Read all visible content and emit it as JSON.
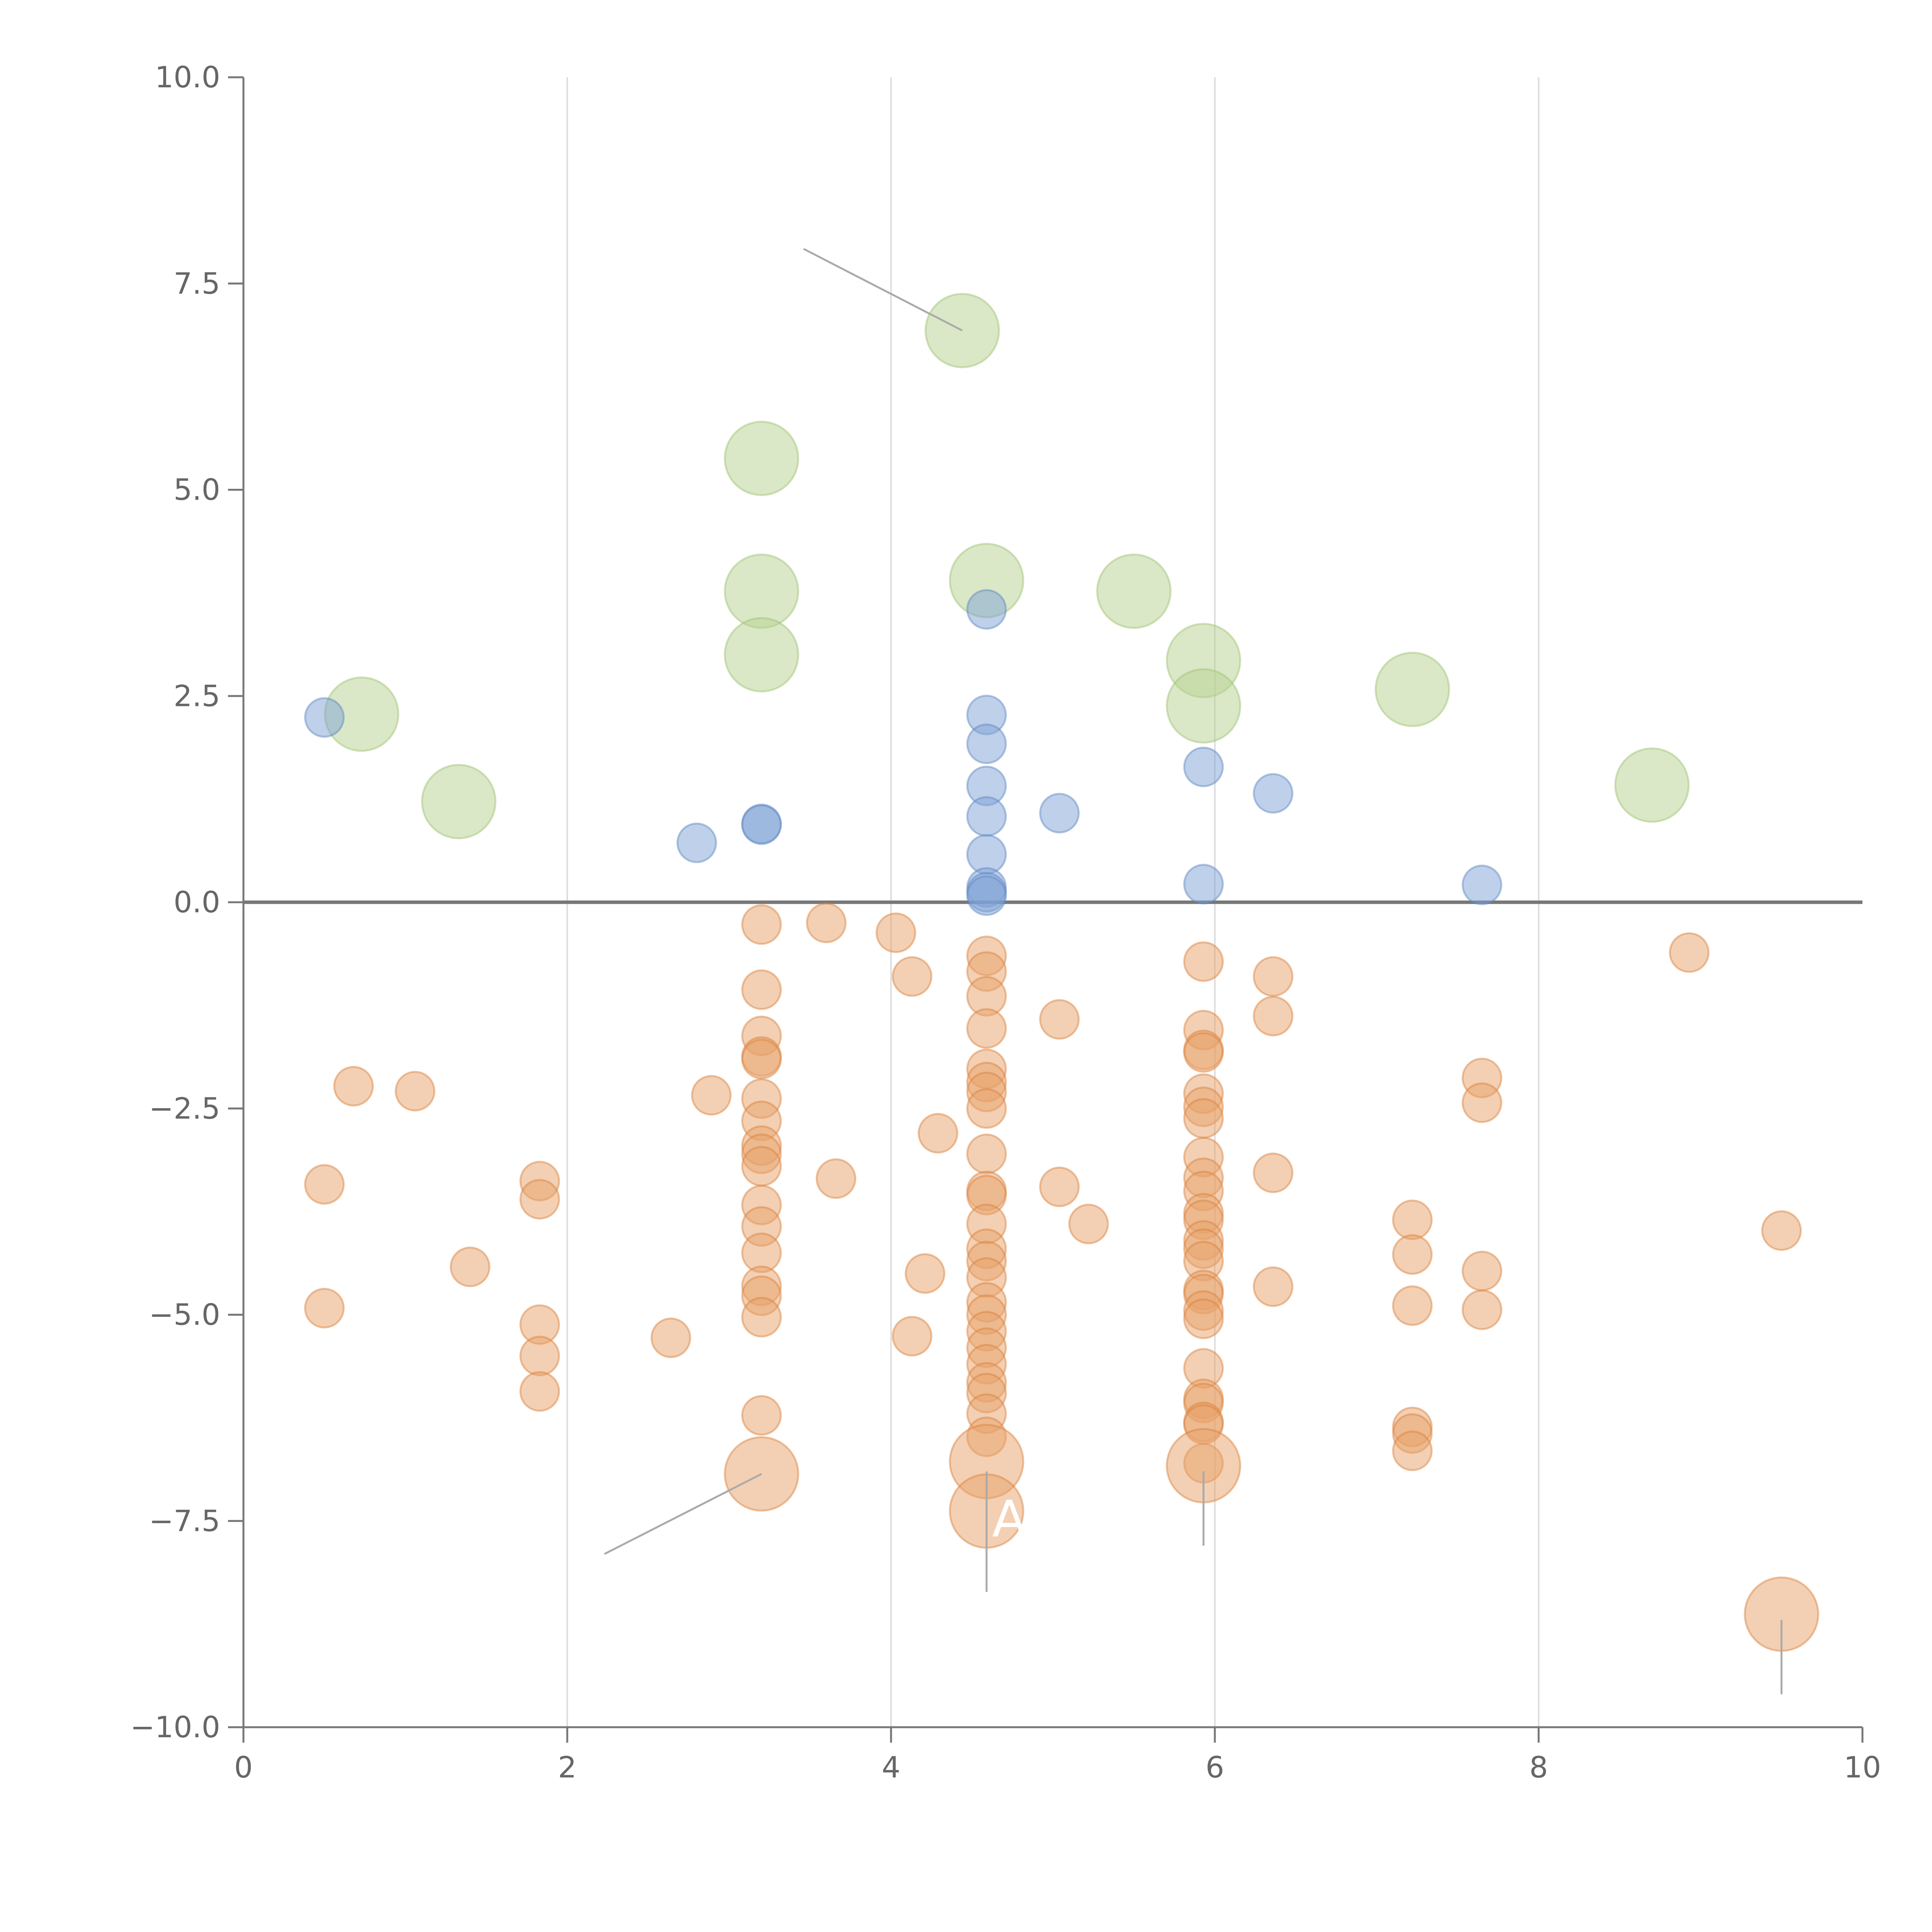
{
  "chart_data": {
    "type": "scatter",
    "title": "",
    "xlabel": "",
    "ylabel": "",
    "xlim": [
      0,
      10
    ],
    "ylim": [
      -10,
      10
    ],
    "x_ticks": [
      0,
      2,
      4,
      6,
      8,
      10
    ],
    "x_tick_labels": [
      "0",
      "2",
      "4",
      "6",
      "8",
      "10"
    ],
    "y_ticks": [
      10,
      7.5,
      5,
      2.5,
      0,
      -2.5,
      -5,
      -7.5,
      -10
    ],
    "y_tick_labels": [
      "10.0",
      "7.5",
      "5.0",
      "2.5",
      "0.0",
      "−2.5",
      "−5.0",
      "−7.5",
      "−10.0"
    ],
    "grid": "vertical",
    "legend": "none",
    "colors": {
      "orange": "#e8a26a",
      "orange_stroke": "#d97e37",
      "blue": "#7ea1d6",
      "blue_stroke": "#5d84c2",
      "green": "#b5d190",
      "green_stroke": "#9dc071",
      "axis": "#777777",
      "grid": "#dddddd",
      "tick_label": "#666666",
      "leader": "#aaaaaa"
    },
    "series": [
      {
        "name": "positive-large",
        "color": "green",
        "size": "large",
        "points": [
          [
            0.73,
            2.28
          ],
          [
            1.33,
            1.22
          ],
          [
            3.2,
            5.38
          ],
          [
            3.2,
            3.77
          ],
          [
            3.2,
            3.0
          ],
          [
            4.44,
            6.93
          ],
          [
            4.59,
            3.9
          ],
          [
            5.5,
            3.77
          ],
          [
            5.93,
            2.93
          ],
          [
            5.93,
            2.38
          ],
          [
            7.22,
            2.58
          ],
          [
            8.7,
            1.42
          ]
        ]
      },
      {
        "name": "positive-small",
        "color": "blue",
        "size": "small",
        "points": [
          [
            0.5,
            2.24
          ],
          [
            2.8,
            0.72
          ],
          [
            3.2,
            0.95
          ],
          [
            3.2,
            0.94
          ],
          [
            4.59,
            3.55
          ],
          [
            4.59,
            2.27
          ],
          [
            4.59,
            1.92
          ],
          [
            4.59,
            1.41
          ],
          [
            4.59,
            1.04
          ],
          [
            4.59,
            0.58
          ],
          [
            4.59,
            0.18
          ],
          [
            4.59,
            0.12
          ],
          [
            4.59,
            0.08
          ],
          [
            5.04,
            1.08
          ],
          [
            5.93,
            1.64
          ],
          [
            5.93,
            0.22
          ],
          [
            6.36,
            1.32
          ],
          [
            7.65,
            0.21
          ]
        ]
      },
      {
        "name": "negative-small",
        "color": "orange",
        "size": "small",
        "points": [
          [
            0.5,
            -3.42
          ],
          [
            0.5,
            -4.92
          ],
          [
            0.68,
            -2.23
          ],
          [
            1.06,
            -2.29
          ],
          [
            1.4,
            -4.42
          ],
          [
            1.83,
            -3.38
          ],
          [
            1.83,
            -3.6
          ],
          [
            1.83,
            -5.12
          ],
          [
            1.83,
            -5.5
          ],
          [
            1.83,
            -5.93
          ],
          [
            2.64,
            -5.28
          ],
          [
            2.89,
            -2.34
          ],
          [
            3.2,
            -0.27
          ],
          [
            3.2,
            -1.06
          ],
          [
            3.2,
            -1.62
          ],
          [
            3.2,
            -1.87
          ],
          [
            3.2,
            -1.9
          ],
          [
            3.2,
            -2.38
          ],
          [
            3.2,
            -2.65
          ],
          [
            3.2,
            -2.95
          ],
          [
            3.2,
            -3.05
          ],
          [
            3.2,
            -3.2
          ],
          [
            3.2,
            -3.67
          ],
          [
            3.2,
            -3.93
          ],
          [
            3.2,
            -4.25
          ],
          [
            3.2,
            -4.65
          ],
          [
            3.2,
            -4.77
          ],
          [
            3.2,
            -5.03
          ],
          [
            3.2,
            -6.22
          ],
          [
            3.6,
            -0.25
          ],
          [
            3.66,
            -3.35
          ],
          [
            4.03,
            -0.37
          ],
          [
            4.13,
            -0.9
          ],
          [
            4.13,
            -5.26
          ],
          [
            4.21,
            -4.5
          ],
          [
            4.29,
            -2.8
          ],
          [
            4.59,
            -0.65
          ],
          [
            4.59,
            -0.84
          ],
          [
            4.59,
            -1.14
          ],
          [
            4.59,
            -1.53
          ],
          [
            4.59,
            -2.02
          ],
          [
            4.59,
            -2.18
          ],
          [
            4.59,
            -2.3
          ],
          [
            4.59,
            -2.5
          ],
          [
            4.59,
            -3.05
          ],
          [
            4.59,
            -3.5
          ],
          [
            4.59,
            -3.55
          ],
          [
            4.59,
            -3.9
          ],
          [
            4.59,
            -4.2
          ],
          [
            4.59,
            -4.35
          ],
          [
            4.59,
            -4.55
          ],
          [
            4.59,
            -4.85
          ],
          [
            4.59,
            -5.0
          ],
          [
            4.59,
            -5.2
          ],
          [
            4.59,
            -5.4
          ],
          [
            4.59,
            -5.6
          ],
          [
            4.59,
            -5.82
          ],
          [
            4.59,
            -5.95
          ],
          [
            4.59,
            -6.2
          ],
          [
            4.59,
            -6.48
          ],
          [
            5.04,
            -1.42
          ],
          [
            5.04,
            -3.45
          ],
          [
            5.22,
            -3.9
          ],
          [
            5.93,
            -0.72
          ],
          [
            5.93,
            -1.55
          ],
          [
            5.93,
            -1.79
          ],
          [
            5.93,
            -1.82
          ],
          [
            5.93,
            -2.32
          ],
          [
            5.93,
            -2.48
          ],
          [
            5.93,
            -2.62
          ],
          [
            5.93,
            -3.09
          ],
          [
            5.93,
            -3.34
          ],
          [
            5.93,
            -3.5
          ],
          [
            5.93,
            -3.77
          ],
          [
            5.93,
            -3.85
          ],
          [
            5.93,
            -4.1
          ],
          [
            5.93,
            -4.2
          ],
          [
            5.93,
            -4.35
          ],
          [
            5.93,
            -4.7
          ],
          [
            5.93,
            -4.75
          ],
          [
            5.93,
            -4.95
          ],
          [
            5.93,
            -5.05
          ],
          [
            5.93,
            -5.65
          ],
          [
            5.93,
            -6.02
          ],
          [
            5.93,
            -6.07
          ],
          [
            5.93,
            -6.3
          ],
          [
            5.93,
            -6.33
          ],
          [
            5.93,
            -6.8
          ],
          [
            6.36,
            -0.9
          ],
          [
            6.36,
            -1.38
          ],
          [
            6.36,
            -3.28
          ],
          [
            6.36,
            -4.66
          ],
          [
            7.22,
            -3.85
          ],
          [
            7.22,
            -4.27
          ],
          [
            7.22,
            -4.89
          ],
          [
            7.22,
            -6.36
          ],
          [
            7.22,
            -6.44
          ],
          [
            7.22,
            -6.65
          ],
          [
            7.65,
            -2.13
          ],
          [
            7.65,
            -2.43
          ],
          [
            7.65,
            -4.47
          ],
          [
            7.65,
            -4.94
          ],
          [
            8.93,
            -0.61
          ],
          [
            9.5,
            -3.98
          ]
        ]
      },
      {
        "name": "negative-large",
        "color": "orange",
        "size": "large",
        "points": [
          [
            3.2,
            -6.93
          ],
          [
            4.59,
            -6.78
          ],
          [
            4.59,
            -7.38
          ],
          [
            5.93,
            -6.83
          ],
          [
            9.5,
            -8.63
          ]
        ]
      }
    ],
    "annotations": [
      {
        "text": "A",
        "x": 4.6,
        "y": -7.5,
        "color": "#ffffff"
      }
    ],
    "leader_lines": [
      {
        "from": [
          4.44,
          6.93
        ],
        "to": [
          3.46,
          7.92
        ]
      },
      {
        "from": [
          3.2,
          -6.93
        ],
        "to": [
          2.23,
          -7.9
        ]
      },
      {
        "from": [
          4.59,
          -6.9
        ],
        "to": [
          4.59,
          -8.36
        ]
      },
      {
        "from": [
          5.93,
          -6.9
        ],
        "to": [
          5.93,
          -7.8
        ]
      },
      {
        "from": [
          9.5,
          -8.7
        ],
        "to": [
          9.5,
          -9.6
        ]
      }
    ]
  }
}
